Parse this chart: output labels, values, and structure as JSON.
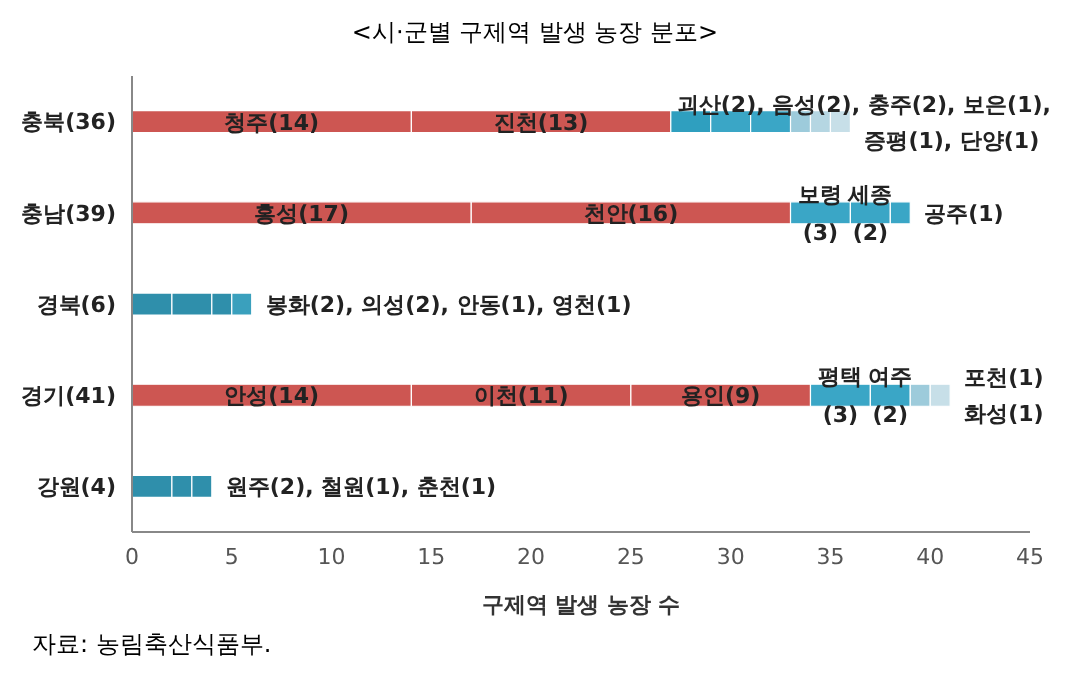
{
  "chart_data": {
    "type": "bar",
    "orientation": "horizontal",
    "stacked": true,
    "title": "<시·군별 구제역 발생 농장 분포>",
    "xlabel": "구제역 발생 농장 수",
    "categories": [
      "충북(36)",
      "충남(39)",
      "경북(6)",
      "경기(41)",
      "강원(4)"
    ],
    "series": [
      {
        "colors": [
          "#cd5652",
          "#cd5652",
          "#2f8fab",
          "#cd5652",
          "#2f8fab"
        ],
        "values": [
          14,
          17,
          2,
          14,
          2
        ],
        "value_labels": [
          "청주(14)",
          "홍성(17)",
          null,
          "안성(14)",
          null
        ]
      },
      {
        "colors": [
          "#cd5652",
          "#cd5652",
          "#2f8fab",
          "#cd5652",
          "#2f8fab"
        ],
        "values": [
          13,
          16,
          2,
          11,
          1
        ],
        "value_labels": [
          "진천(13)",
          "천안(16)",
          null,
          "이천(11)",
          null
        ]
      },
      {
        "colors": [
          "#2f9fbf",
          "#3aa6c6",
          "#2f8fab",
          "#cd5652",
          "#2f8fab"
        ],
        "values": [
          2,
          3,
          1,
          9,
          1
        ],
        "value_labels": [
          null,
          "보령 (3)",
          null,
          "용인(9)",
          null
        ]
      },
      {
        "colors": [
          "#3aa6c6",
          "#3aa6c6",
          "#3aa0bd",
          "#3aa6c6",
          null
        ],
        "values": [
          2,
          2,
          1,
          3,
          null
        ],
        "value_labels": [
          null,
          "세종 (2)",
          null,
          "평택 (3)",
          null
        ]
      },
      {
        "colors": [
          "#3aa6c6",
          "#3aa6c6",
          null,
          "#3aa6c6",
          null
        ],
        "values": [
          2,
          1,
          null,
          2,
          null
        ],
        "value_labels": [
          null,
          null,
          null,
          "여주 (2)",
          null
        ]
      },
      {
        "colors": [
          "#9dcbdb",
          null,
          null,
          "#9dcbdb",
          null
        ],
        "values": [
          1,
          null,
          null,
          1,
          null
        ]
      },
      {
        "colors": [
          "#b5d6e2",
          null,
          null,
          "#c7dfe8",
          null
        ],
        "values": [
          1,
          null,
          null,
          1,
          null
        ]
      },
      {
        "colors": [
          "#c7dfe8",
          null,
          null,
          null,
          null
        ],
        "values": [
          1,
          null,
          null,
          null,
          null
        ]
      }
    ],
    "xlim": [
      0,
      45
    ],
    "xticks": [
      0,
      5,
      10,
      15,
      20,
      25,
      30,
      35,
      40,
      45
    ],
    "legend": false,
    "grid": false,
    "annotations": [
      {
        "text": "괴산(2), 음성(2), 충주(2), 보은(1),",
        "x": 27.3,
        "y": "충북(36)"
      },
      {
        "text": "증평(1), 단양(1)",
        "x": 36,
        "y": "충북(36)"
      },
      {
        "text": "공주(1)",
        "x": 39,
        "y": "충남(39)"
      },
      {
        "text": "봉화(2), 의성(2), 안동(1), 영천(1)",
        "x": 6,
        "y": "경북(6)"
      },
      {
        "text": "포천(1)",
        "x": 41,
        "y": "경기(41)"
      },
      {
        "text": "화성(1)",
        "x": 41,
        "y": "경기(41)"
      },
      {
        "text": "원주(2), 철원(1), 춘천(1)",
        "x": 4,
        "y": "강원(4)"
      },
      "자료: 농림축산식품부."
    ]
  }
}
